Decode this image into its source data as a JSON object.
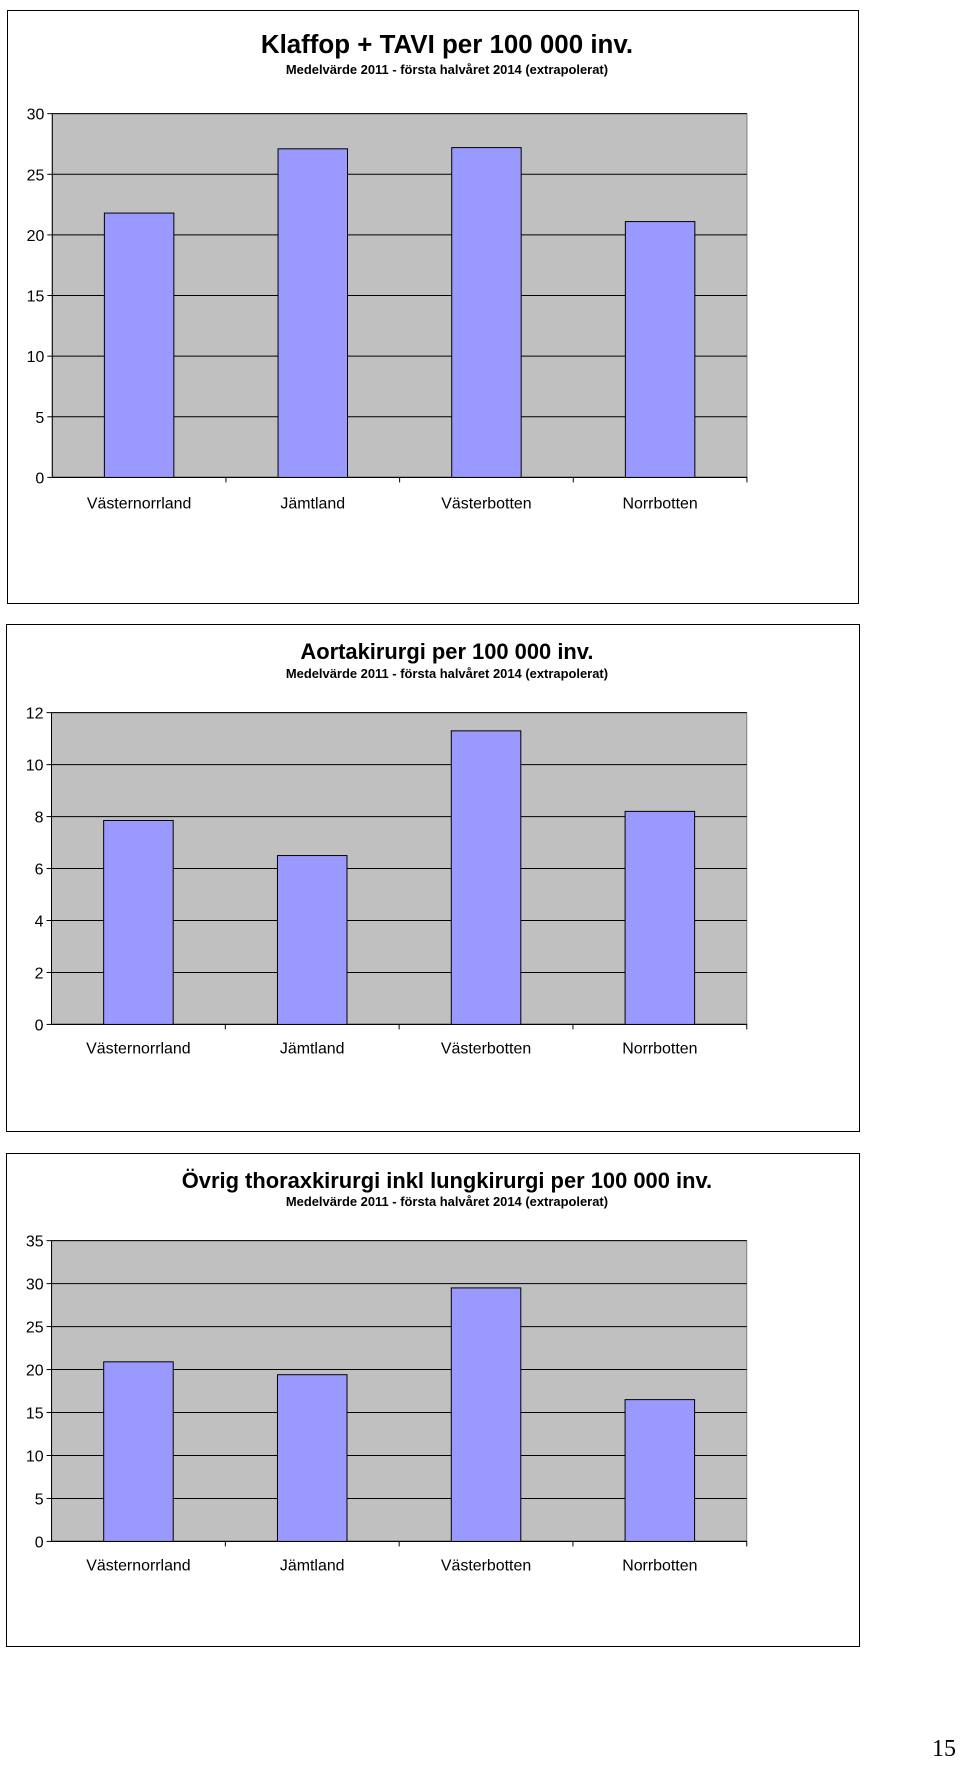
{
  "page_number": "15",
  "colors": {
    "plot_bg": "#c0c0c0",
    "bar_fill": "#9999ff",
    "bar_stroke": "#000000",
    "grid": "#000000"
  },
  "chart_data": [
    {
      "type": "bar",
      "title": "Klaffop + TAVI per 100 000 inv.",
      "subtitle": "Medelvärde 2011 - första halvåret 2014 (extrapolerat)",
      "xlabel": "",
      "ylabel": "",
      "categories": [
        "Västernorrland",
        "Jämtland",
        "Västerbotten",
        "Norrbotten"
      ],
      "values": [
        21.8,
        27.1,
        27.2,
        21.1
      ],
      "ylim": [
        0,
        30
      ],
      "yticks": [
        "0",
        "5",
        "10",
        "15",
        "20",
        "25",
        "30"
      ],
      "grid": true
    },
    {
      "type": "bar",
      "title": "Aortakirurgi per 100 000 inv.",
      "subtitle": "Medelvärde 2011 - första halvåret 2014 (extrapolerat)",
      "xlabel": "",
      "ylabel": "",
      "categories": [
        "Västernorrland",
        "Jämtland",
        "Västerbotten",
        "Norrbotten"
      ],
      "values": [
        7.85,
        6.5,
        11.3,
        8.2
      ],
      "ylim": [
        0,
        12
      ],
      "yticks": [
        "0",
        "2",
        "4",
        "6",
        "8",
        "10",
        "12"
      ],
      "grid": true
    },
    {
      "type": "bar",
      "title": "Övrig thoraxkirurgi inkl lungkirurgi per 100 000 inv.",
      "subtitle": "Medelvärde 2011 - första halvåret 2014 (extrapolerat)",
      "xlabel": "",
      "ylabel": "",
      "categories": [
        "Västernorrland",
        "Jämtland",
        "Västerbotten",
        "Norrbotten"
      ],
      "values": [
        20.9,
        19.4,
        29.5,
        16.5
      ],
      "ylim": [
        0,
        35
      ],
      "yticks": [
        "0",
        "5",
        "10",
        "15",
        "20",
        "25",
        "30",
        "35"
      ],
      "grid": true
    }
  ]
}
